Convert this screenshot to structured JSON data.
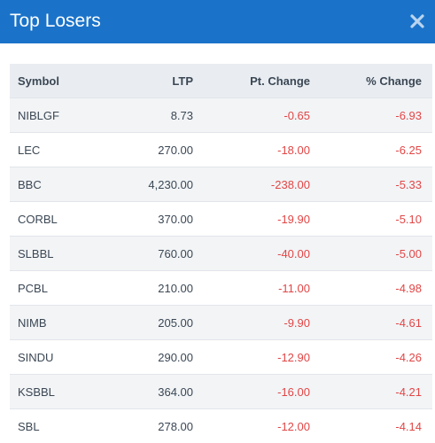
{
  "header": {
    "title": "Top Losers",
    "close_glyph": "✖",
    "color": "#1a73c9"
  },
  "table": {
    "columns": [
      "Symbol",
      "LTP",
      "Pt. Change",
      "% Change"
    ],
    "rows": [
      {
        "symbol": "NIBLGF",
        "ltp": "8.73",
        "pt_change": "-0.65",
        "pct_change": "-6.93"
      },
      {
        "symbol": "LEC",
        "ltp": "270.00",
        "pt_change": "-18.00",
        "pct_change": "-6.25"
      },
      {
        "symbol": "BBC",
        "ltp": "4,230.00",
        "pt_change": "-238.00",
        "pct_change": "-5.33"
      },
      {
        "symbol": "CORBL",
        "ltp": "370.00",
        "pt_change": "-19.90",
        "pct_change": "-5.10"
      },
      {
        "symbol": "SLBBL",
        "ltp": "760.00",
        "pt_change": "-40.00",
        "pct_change": "-5.00"
      },
      {
        "symbol": "PCBL",
        "ltp": "210.00",
        "pt_change": "-11.00",
        "pct_change": "-4.98"
      },
      {
        "symbol": "NIMB",
        "ltp": "205.00",
        "pt_change": "-9.90",
        "pct_change": "-4.61"
      },
      {
        "symbol": "SINDU",
        "ltp": "290.00",
        "pt_change": "-12.90",
        "pct_change": "-4.26"
      },
      {
        "symbol": "KSBBL",
        "ltp": "364.00",
        "pt_change": "-16.00",
        "pct_change": "-4.21"
      },
      {
        "symbol": "SBL",
        "ltp": "278.00",
        "pt_change": "-12.00",
        "pct_change": "-4.14"
      }
    ],
    "negative_color": "#e24646"
  }
}
